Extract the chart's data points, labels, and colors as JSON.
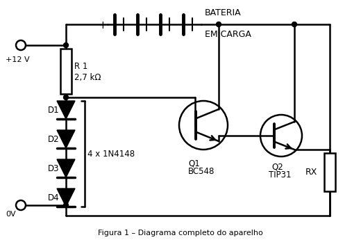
{
  "title": "Figura 1 – Diagrama completo do aparelho",
  "background_color": "#ffffff",
  "line_color": "#000000",
  "text_color": "#000000",
  "labels": {
    "plus12v": "+12 V",
    "zero_v": "0V",
    "R1": "R 1",
    "R1_val": "2,7 kΩ",
    "D1": "D1",
    "D2": "D2",
    "D3": "D3",
    "D4": "D4",
    "diodes_label": "4 x 1N4148",
    "Q1": "Q1",
    "Q1_val": "BC548",
    "Q2": "Q2",
    "Q2_val": "TIP31",
    "RX": "RX",
    "battery_line1": "BATERIA",
    "battery_line2": "EM CARGA",
    "plus_sign": "+"
  }
}
